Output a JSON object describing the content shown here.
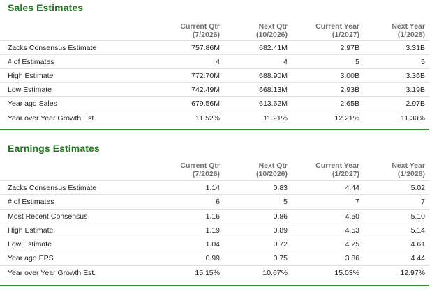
{
  "sales": {
    "title": "Sales Estimates",
    "columns": [
      {
        "line1": "Current Qtr",
        "line2": "(7/2026)"
      },
      {
        "line1": "Next Qtr",
        "line2": "(10/2026)"
      },
      {
        "line1": "Current Year",
        "line2": "(1/2027)"
      },
      {
        "line1": "Next Year",
        "line2": "(1/2028)"
      }
    ],
    "rows": [
      {
        "label": "Zacks Consensus Estimate",
        "values": [
          "757.86M",
          "682.41M",
          "2.97B",
          "3.31B"
        ]
      },
      {
        "label": "# of Estimates",
        "values": [
          "4",
          "4",
          "5",
          "5"
        ]
      },
      {
        "label": "High Estimate",
        "values": [
          "772.70M",
          "688.90M",
          "3.00B",
          "3.36B"
        ]
      },
      {
        "label": "Low Estimate",
        "values": [
          "742.49M",
          "668.13M",
          "2.93B",
          "3.19B"
        ]
      },
      {
        "label": "Year ago Sales",
        "values": [
          "679.56M",
          "613.62M",
          "2.65B",
          "2.97B"
        ]
      },
      {
        "label": "Year over Year Growth Est.",
        "values": [
          "11.52%",
          "11.21%",
          "12.21%",
          "11.30%"
        ]
      }
    ]
  },
  "earnings": {
    "title": "Earnings Estimates",
    "columns": [
      {
        "line1": "Current Qtr",
        "line2": "(7/2026)"
      },
      {
        "line1": "Next Qtr",
        "line2": "(10/2026)"
      },
      {
        "line1": "Current Year",
        "line2": "(1/2027)"
      },
      {
        "line1": "Next Year",
        "line2": "(1/2028)"
      }
    ],
    "rows": [
      {
        "label": "Zacks Consensus Estimate",
        "values": [
          "1.14",
          "0.83",
          "4.44",
          "5.02"
        ]
      },
      {
        "label": "# of Estimates",
        "values": [
          "6",
          "5",
          "7",
          "7"
        ]
      },
      {
        "label": "Most Recent Consensus",
        "values": [
          "1.16",
          "0.86",
          "4.50",
          "5.10"
        ]
      },
      {
        "label": "High Estimate",
        "values": [
          "1.19",
          "0.89",
          "4.53",
          "5.14"
        ]
      },
      {
        "label": "Low Estimate",
        "values": [
          "1.04",
          "0.72",
          "4.25",
          "4.61"
        ]
      },
      {
        "label": "Year ago EPS",
        "values": [
          "0.99",
          "0.75",
          "3.86",
          "4.44"
        ]
      },
      {
        "label": "Year over Year Growth Est.",
        "values": [
          "15.15%",
          "10.67%",
          "15.03%",
          "12.97%"
        ]
      }
    ]
  },
  "colors": {
    "accent_green": "#2e8b2e",
    "title_green": "#1a7a1a",
    "header_gray": "#707070",
    "row_border": "#e2e2e2"
  }
}
